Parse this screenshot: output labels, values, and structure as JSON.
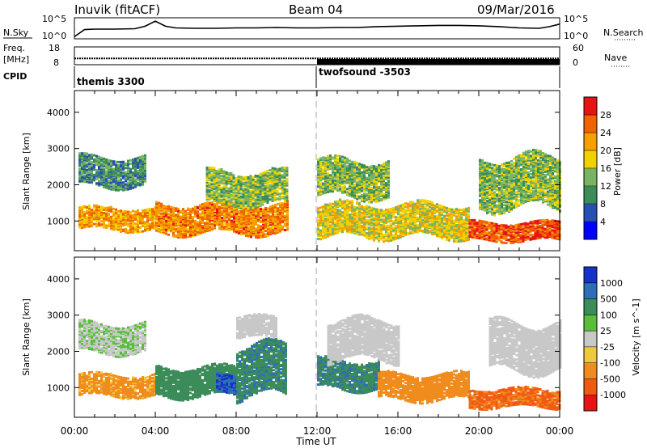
{
  "header": {
    "station": "Inuvik (fitACF)",
    "beam": "Beam 04",
    "date": "09/Mar/2016"
  },
  "labels": {
    "nsky": "N.Sky",
    "nsearch": "N.Search",
    "freq": "Freq.",
    "freq_unit": "[MHz]",
    "nave": "Nave",
    "cpid": "CPID"
  },
  "chart_data": [
    {
      "type": "line",
      "panel": "noise",
      "yscale": "log",
      "ytick_labels_left": [
        "10^5",
        "10^0"
      ],
      "ytick_labels_right": [
        "10^5",
        "10^0"
      ],
      "series": [
        {
          "name": "N.Sky",
          "x": [
            "00:00",
            "00:30",
            "01:00",
            "02:00",
            "03:00",
            "03:30",
            "04:00",
            "04:30",
            "05:00",
            "06:00",
            "07:00",
            "08:00",
            "09:00",
            "10:00",
            "11:00",
            "12:00",
            "13:00",
            "14:00",
            "15:00",
            "16:00",
            "17:00",
            "18:00",
            "19:00",
            "20:00",
            "21:00",
            "22:00",
            "23:00",
            "23:30",
            "24:00"
          ],
          "values": [
            0.5,
            2.2,
            2.3,
            2.3,
            2.4,
            3.0,
            4.2,
            3.0,
            2.6,
            2.5,
            2.5,
            2.6,
            2.6,
            2.7,
            2.6,
            2.6,
            2.7,
            2.7,
            2.9,
            3.0,
            3.1,
            3.2,
            3.2,
            3.1,
            2.9,
            2.6,
            2.5,
            2.9,
            3.5
          ]
        }
      ]
    },
    {
      "type": "line",
      "panel": "frequency",
      "ytick_labels_left": [
        "18",
        "8"
      ],
      "ytick_labels_right": [
        "60",
        "0"
      ],
      "series": [
        {
          "name": "Freq.",
          "x": [
            "00:00",
            "24:00"
          ],
          "values": [
            11.5,
            11.5
          ]
        },
        {
          "name": "Nave",
          "x": [
            "00:00",
            "12:00",
            "12:00",
            "24:00"
          ],
          "values": [
            0,
            0,
            19,
            19
          ]
        }
      ]
    },
    {
      "type": "table",
      "panel": "cpid",
      "segments": [
        {
          "start": "00:00",
          "end": "12:00",
          "label": "themis 3300"
        },
        {
          "start": "12:00",
          "end": "24:00",
          "label": "twofsound -3503"
        }
      ]
    },
    {
      "type": "heatmap",
      "panel": "power",
      "ylabel": "Slant Range [km]",
      "yticks": [
        1000,
        2000,
        3000,
        4000
      ],
      "ylim": [
        180,
        4600
      ],
      "colorbar": {
        "label": "Power [dB]",
        "ticks": [
          "4",
          "8",
          "12",
          "16",
          "20",
          "24",
          "28"
        ],
        "range": [
          0,
          30
        ],
        "colors": [
          "#0000ff",
          "#2850b4",
          "#3c8c5a",
          "#78b464",
          "#f0d200",
          "#f5a000",
          "#f06400",
          "#e61414"
        ]
      },
      "bands": [
        {
          "start": 0.2,
          "end": 4.0,
          "range_low": 800,
          "range_high": 1400,
          "level": 22
        },
        {
          "start": 0.2,
          "end": 3.5,
          "range_low": 2000,
          "range_high": 2800,
          "level": 10
        },
        {
          "start": 4.0,
          "end": 10.5,
          "range_low": 700,
          "range_high": 1500,
          "level": 24
        },
        {
          "start": 6.5,
          "end": 10.5,
          "range_low": 1500,
          "range_high": 2400,
          "level": 14
        },
        {
          "start": 12.0,
          "end": 19.5,
          "range_low": 600,
          "range_high": 1500,
          "level": 18
        },
        {
          "start": 12.0,
          "end": 15.5,
          "range_low": 1700,
          "range_high": 2700,
          "level": 14
        },
        {
          "start": 19.5,
          "end": 24.0,
          "range_low": 500,
          "range_high": 1000,
          "level": 27
        },
        {
          "start": 20.0,
          "end": 24.0,
          "range_low": 1400,
          "range_high": 2800,
          "level": 14
        }
      ]
    },
    {
      "type": "heatmap",
      "panel": "velocity",
      "ylabel": "Slant Range [km]",
      "yticks": [
        1000,
        2000,
        3000,
        4000
      ],
      "ylim": [
        180,
        4600
      ],
      "colorbar": {
        "label": "Velocity [m s^-1]",
        "ticks": [
          "1000",
          "500",
          "100",
          "25",
          "-25",
          "-100",
          "-500",
          "-1000"
        ],
        "range": [
          1200,
          -1200
        ],
        "colors": [
          "#1432c8",
          "#2d6eb4",
          "#3c8c5a",
          "#5abe3c",
          "#c8c8c8",
          "#f0c83c",
          "#f08c1e",
          "#f05a14",
          "#e61414"
        ]
      },
      "bands": [
        {
          "start": 0.2,
          "end": 4.0,
          "range_low": 800,
          "range_high": 1400,
          "level": -100
        },
        {
          "start": 0.2,
          "end": 3.5,
          "range_low": 2000,
          "range_high": 2800,
          "level": 20
        },
        {
          "start": 4.0,
          "end": 8.0,
          "range_low": 800,
          "range_high": 1600,
          "level": 200
        },
        {
          "start": 7.0,
          "end": 8.0,
          "range_low": 900,
          "range_high": 1400,
          "level": 700
        },
        {
          "start": 8.0,
          "end": 10.5,
          "range_low": 800,
          "range_high": 2200,
          "level": 250
        },
        {
          "start": 8.0,
          "end": 10.0,
          "range_low": 2400,
          "range_high": 3000,
          "level": 0
        },
        {
          "start": 12.0,
          "end": 15.0,
          "range_low": 1000,
          "range_high": 1800,
          "level": 250
        },
        {
          "start": 15.0,
          "end": 19.5,
          "range_low": 700,
          "range_high": 1400,
          "level": -150
        },
        {
          "start": 19.5,
          "end": 24.0,
          "range_low": 500,
          "range_high": 1000,
          "level": -350
        },
        {
          "start": 12.5,
          "end": 16.0,
          "range_low": 1800,
          "range_high": 2900,
          "level": 0
        },
        {
          "start": 20.5,
          "end": 24.0,
          "range_low": 1500,
          "range_high": 2800,
          "level": 0
        }
      ]
    }
  ],
  "xaxis": {
    "label": "Time UT",
    "tick_labels": [
      "00:00",
      "04:00",
      "08:00",
      "12:00",
      "16:00",
      "20:00",
      "00:00"
    ]
  }
}
